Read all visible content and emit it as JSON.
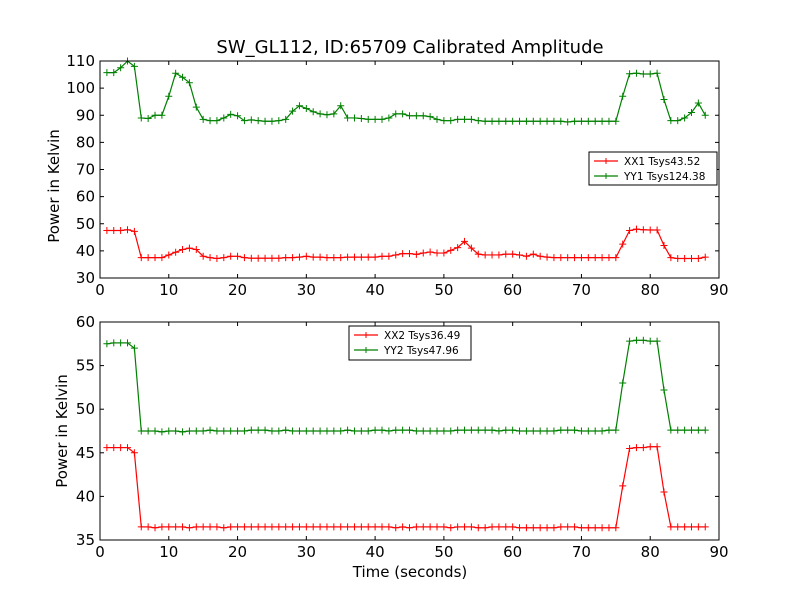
{
  "chart_data": [
    {
      "type": "line",
      "title": "SW_GL112, ID:65709 Calibrated Amplitude",
      "xlabel": "",
      "ylabel": "Power in Kelvin",
      "xlim": [
        0,
        90
      ],
      "ylim": [
        30,
        110
      ],
      "xticks": [
        "0",
        "10",
        "20",
        "30",
        "40",
        "50",
        "60",
        "70",
        "80",
        "90"
      ],
      "yticks": [
        "30",
        "40",
        "50",
        "60",
        "70",
        "80",
        "90",
        "100",
        "110"
      ],
      "legend_position": "center-right",
      "grid": false,
      "x": [
        1,
        2,
        3,
        4,
        5,
        6,
        7,
        8,
        9,
        10,
        11,
        12,
        13,
        14,
        15,
        16,
        17,
        18,
        19,
        20,
        21,
        22,
        23,
        24,
        25,
        26,
        27,
        28,
        29,
        30,
        31,
        32,
        33,
        34,
        35,
        36,
        37,
        38,
        39,
        40,
        41,
        42,
        43,
        44,
        45,
        46,
        47,
        48,
        49,
        50,
        51,
        52,
        53,
        54,
        55,
        56,
        57,
        58,
        59,
        60,
        61,
        62,
        63,
        64,
        65,
        66,
        67,
        68,
        69,
        70,
        71,
        72,
        73,
        74,
        75,
        76,
        77,
        78,
        79,
        80,
        81,
        82,
        83,
        84,
        85,
        86,
        87,
        88
      ],
      "series": [
        {
          "name": "XX1 Tsys43.52",
          "color": "#ff0000",
          "values": [
            47.5,
            47.5,
            47.5,
            47.8,
            47.2,
            37.5,
            37.5,
            37.5,
            37.5,
            38.5,
            39.5,
            40.5,
            41,
            40.5,
            38,
            37.5,
            37.2,
            37.5,
            38,
            38,
            37.5,
            37.3,
            37.3,
            37.3,
            37.3,
            37.3,
            37.5,
            37.5,
            37.7,
            38,
            37.7,
            37.7,
            37.5,
            37.5,
            37.5,
            37.7,
            37.7,
            37.7,
            37.7,
            37.7,
            38,
            38,
            38.5,
            39,
            39,
            38.7,
            39.2,
            39.6,
            39.2,
            39.2,
            40.2,
            41.2,
            43.5,
            41,
            38.8,
            38.5,
            38.5,
            38.5,
            38.8,
            38.8,
            38.5,
            38,
            38.8,
            38,
            37.7,
            37.5,
            37.5,
            37.5,
            37.5,
            37.5,
            37.5,
            37.5,
            37.5,
            37.5,
            37.5,
            42.5,
            47.5,
            48,
            47.8,
            47.7,
            47.7,
            42,
            37.5,
            37.2,
            37.2,
            37.2,
            37.2,
            37.7
          ]
        },
        {
          "name": "YY1 Tsys124.38",
          "color": "#008000",
          "values": [
            105.7,
            105.7,
            107.5,
            110,
            108,
            89,
            88.8,
            90,
            90,
            97,
            105.5,
            104,
            102,
            93,
            88.5,
            88,
            88,
            89,
            90.3,
            89.8,
            88,
            88.3,
            88,
            87.8,
            87.8,
            88,
            88.5,
            91.5,
            93.5,
            92.5,
            91.3,
            90.5,
            90.2,
            90.5,
            93.5,
            89,
            89,
            88.8,
            88.5,
            88.5,
            88.5,
            89,
            90.5,
            90.5,
            89.8,
            89.8,
            89.8,
            89.5,
            88.5,
            88,
            88,
            88.5,
            88.5,
            88.5,
            88,
            87.8,
            87.8,
            87.8,
            87.8,
            87.8,
            87.8,
            87.8,
            87.8,
            87.8,
            87.8,
            87.8,
            87.8,
            87.5,
            87.8,
            87.8,
            87.8,
            87.8,
            87.8,
            87.8,
            87.8,
            97,
            105.3,
            105.5,
            105.2,
            105.2,
            105.5,
            95.8,
            88,
            88,
            89,
            91,
            94.5,
            90
          ]
        }
      ]
    },
    {
      "type": "line",
      "title": "",
      "xlabel": "Time (seconds)",
      "ylabel": "Power in Kelvin",
      "xlim": [
        0,
        90
      ],
      "ylim": [
        35,
        60
      ],
      "xticks": [
        "0",
        "10",
        "20",
        "30",
        "40",
        "50",
        "60",
        "70",
        "80",
        "90"
      ],
      "yticks": [
        "35",
        "40",
        "45",
        "50",
        "55",
        "60"
      ],
      "legend_position": "upper-center",
      "grid": false,
      "x": [
        1,
        2,
        3,
        4,
        5,
        6,
        7,
        8,
        9,
        10,
        11,
        12,
        13,
        14,
        15,
        16,
        17,
        18,
        19,
        20,
        21,
        22,
        23,
        24,
        25,
        26,
        27,
        28,
        29,
        30,
        31,
        32,
        33,
        34,
        35,
        36,
        37,
        38,
        39,
        40,
        41,
        42,
        43,
        44,
        45,
        46,
        47,
        48,
        49,
        50,
        51,
        52,
        53,
        54,
        55,
        56,
        57,
        58,
        59,
        60,
        61,
        62,
        63,
        64,
        65,
        66,
        67,
        68,
        69,
        70,
        71,
        72,
        73,
        74,
        75,
        76,
        77,
        78,
        79,
        80,
        81,
        82,
        83,
        84,
        85,
        86,
        87,
        88
      ],
      "series": [
        {
          "name": "XX2 Tsys36.49",
          "color": "#ff0000",
          "values": [
            45.6,
            45.6,
            45.6,
            45.6,
            45,
            36.5,
            36.5,
            36.4,
            36.5,
            36.5,
            36.5,
            36.5,
            36.4,
            36.5,
            36.5,
            36.5,
            36.5,
            36.4,
            36.5,
            36.5,
            36.5,
            36.5,
            36.5,
            36.5,
            36.5,
            36.5,
            36.5,
            36.5,
            36.5,
            36.5,
            36.5,
            36.5,
            36.5,
            36.5,
            36.5,
            36.5,
            36.5,
            36.5,
            36.5,
            36.5,
            36.5,
            36.5,
            36.4,
            36.5,
            36.4,
            36.5,
            36.5,
            36.5,
            36.5,
            36.5,
            36.4,
            36.5,
            36.5,
            36.5,
            36.4,
            36.4,
            36.5,
            36.5,
            36.5,
            36.5,
            36.4,
            36.4,
            36.4,
            36.4,
            36.4,
            36.4,
            36.5,
            36.5,
            36.5,
            36.4,
            36.4,
            36.4,
            36.4,
            36.4,
            36.4,
            41.2,
            45.5,
            45.6,
            45.6,
            45.7,
            45.7,
            40.5,
            36.5,
            36.5,
            36.5,
            36.5,
            36.5,
            36.5
          ]
        },
        {
          "name": "YY2 Tsys47.96",
          "color": "#008000",
          "values": [
            57.5,
            57.6,
            57.6,
            57.6,
            57,
            47.5,
            47.5,
            47.5,
            47.4,
            47.5,
            47.5,
            47.4,
            47.5,
            47.5,
            47.5,
            47.6,
            47.5,
            47.5,
            47.5,
            47.5,
            47.5,
            47.6,
            47.6,
            47.6,
            47.5,
            47.5,
            47.6,
            47.5,
            47.5,
            47.5,
            47.5,
            47.5,
            47.5,
            47.5,
            47.5,
            47.6,
            47.5,
            47.5,
            47.5,
            47.6,
            47.6,
            47.5,
            47.6,
            47.6,
            47.6,
            47.5,
            47.5,
            47.5,
            47.5,
            47.5,
            47.5,
            47.6,
            47.6,
            47.6,
            47.6,
            47.6,
            47.6,
            47.5,
            47.6,
            47.6,
            47.5,
            47.5,
            47.5,
            47.5,
            47.5,
            47.5,
            47.6,
            47.6,
            47.6,
            47.5,
            47.5,
            47.5,
            47.5,
            47.6,
            47.6,
            53,
            57.8,
            57.9,
            57.9,
            57.8,
            57.8,
            52.2,
            47.6,
            47.6,
            47.6,
            47.6,
            47.6,
            47.6
          ]
        }
      ]
    }
  ]
}
